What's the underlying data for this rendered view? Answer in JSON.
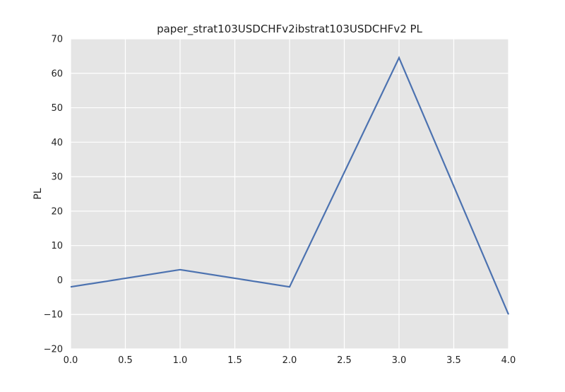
{
  "chart_data": {
    "type": "line",
    "title": "paper_strat103USDCHFv2ibstrat103USDCHFv2 PL",
    "xlabel": "",
    "ylabel": "PL",
    "x": [
      0,
      1,
      2,
      3,
      4
    ],
    "series": [
      {
        "values": [
          -2,
          3,
          -2,
          64.5,
          -10
        ]
      }
    ],
    "xlim": [
      0,
      4
    ],
    "ylim": [
      -20,
      70
    ],
    "xticks": [
      "0.0",
      "0.5",
      "1.0",
      "1.5",
      "2.0",
      "2.5",
      "3.0",
      "3.5",
      "4.0"
    ],
    "yticks": [
      "-20",
      "-10",
      "0",
      "10",
      "20",
      "30",
      "40",
      "50",
      "60",
      "70"
    ],
    "grid": true,
    "legend": "none",
    "colors": {
      "line": "#4c72b0",
      "plot_background": "#e5e5e5",
      "grid": "#ffffff"
    }
  }
}
